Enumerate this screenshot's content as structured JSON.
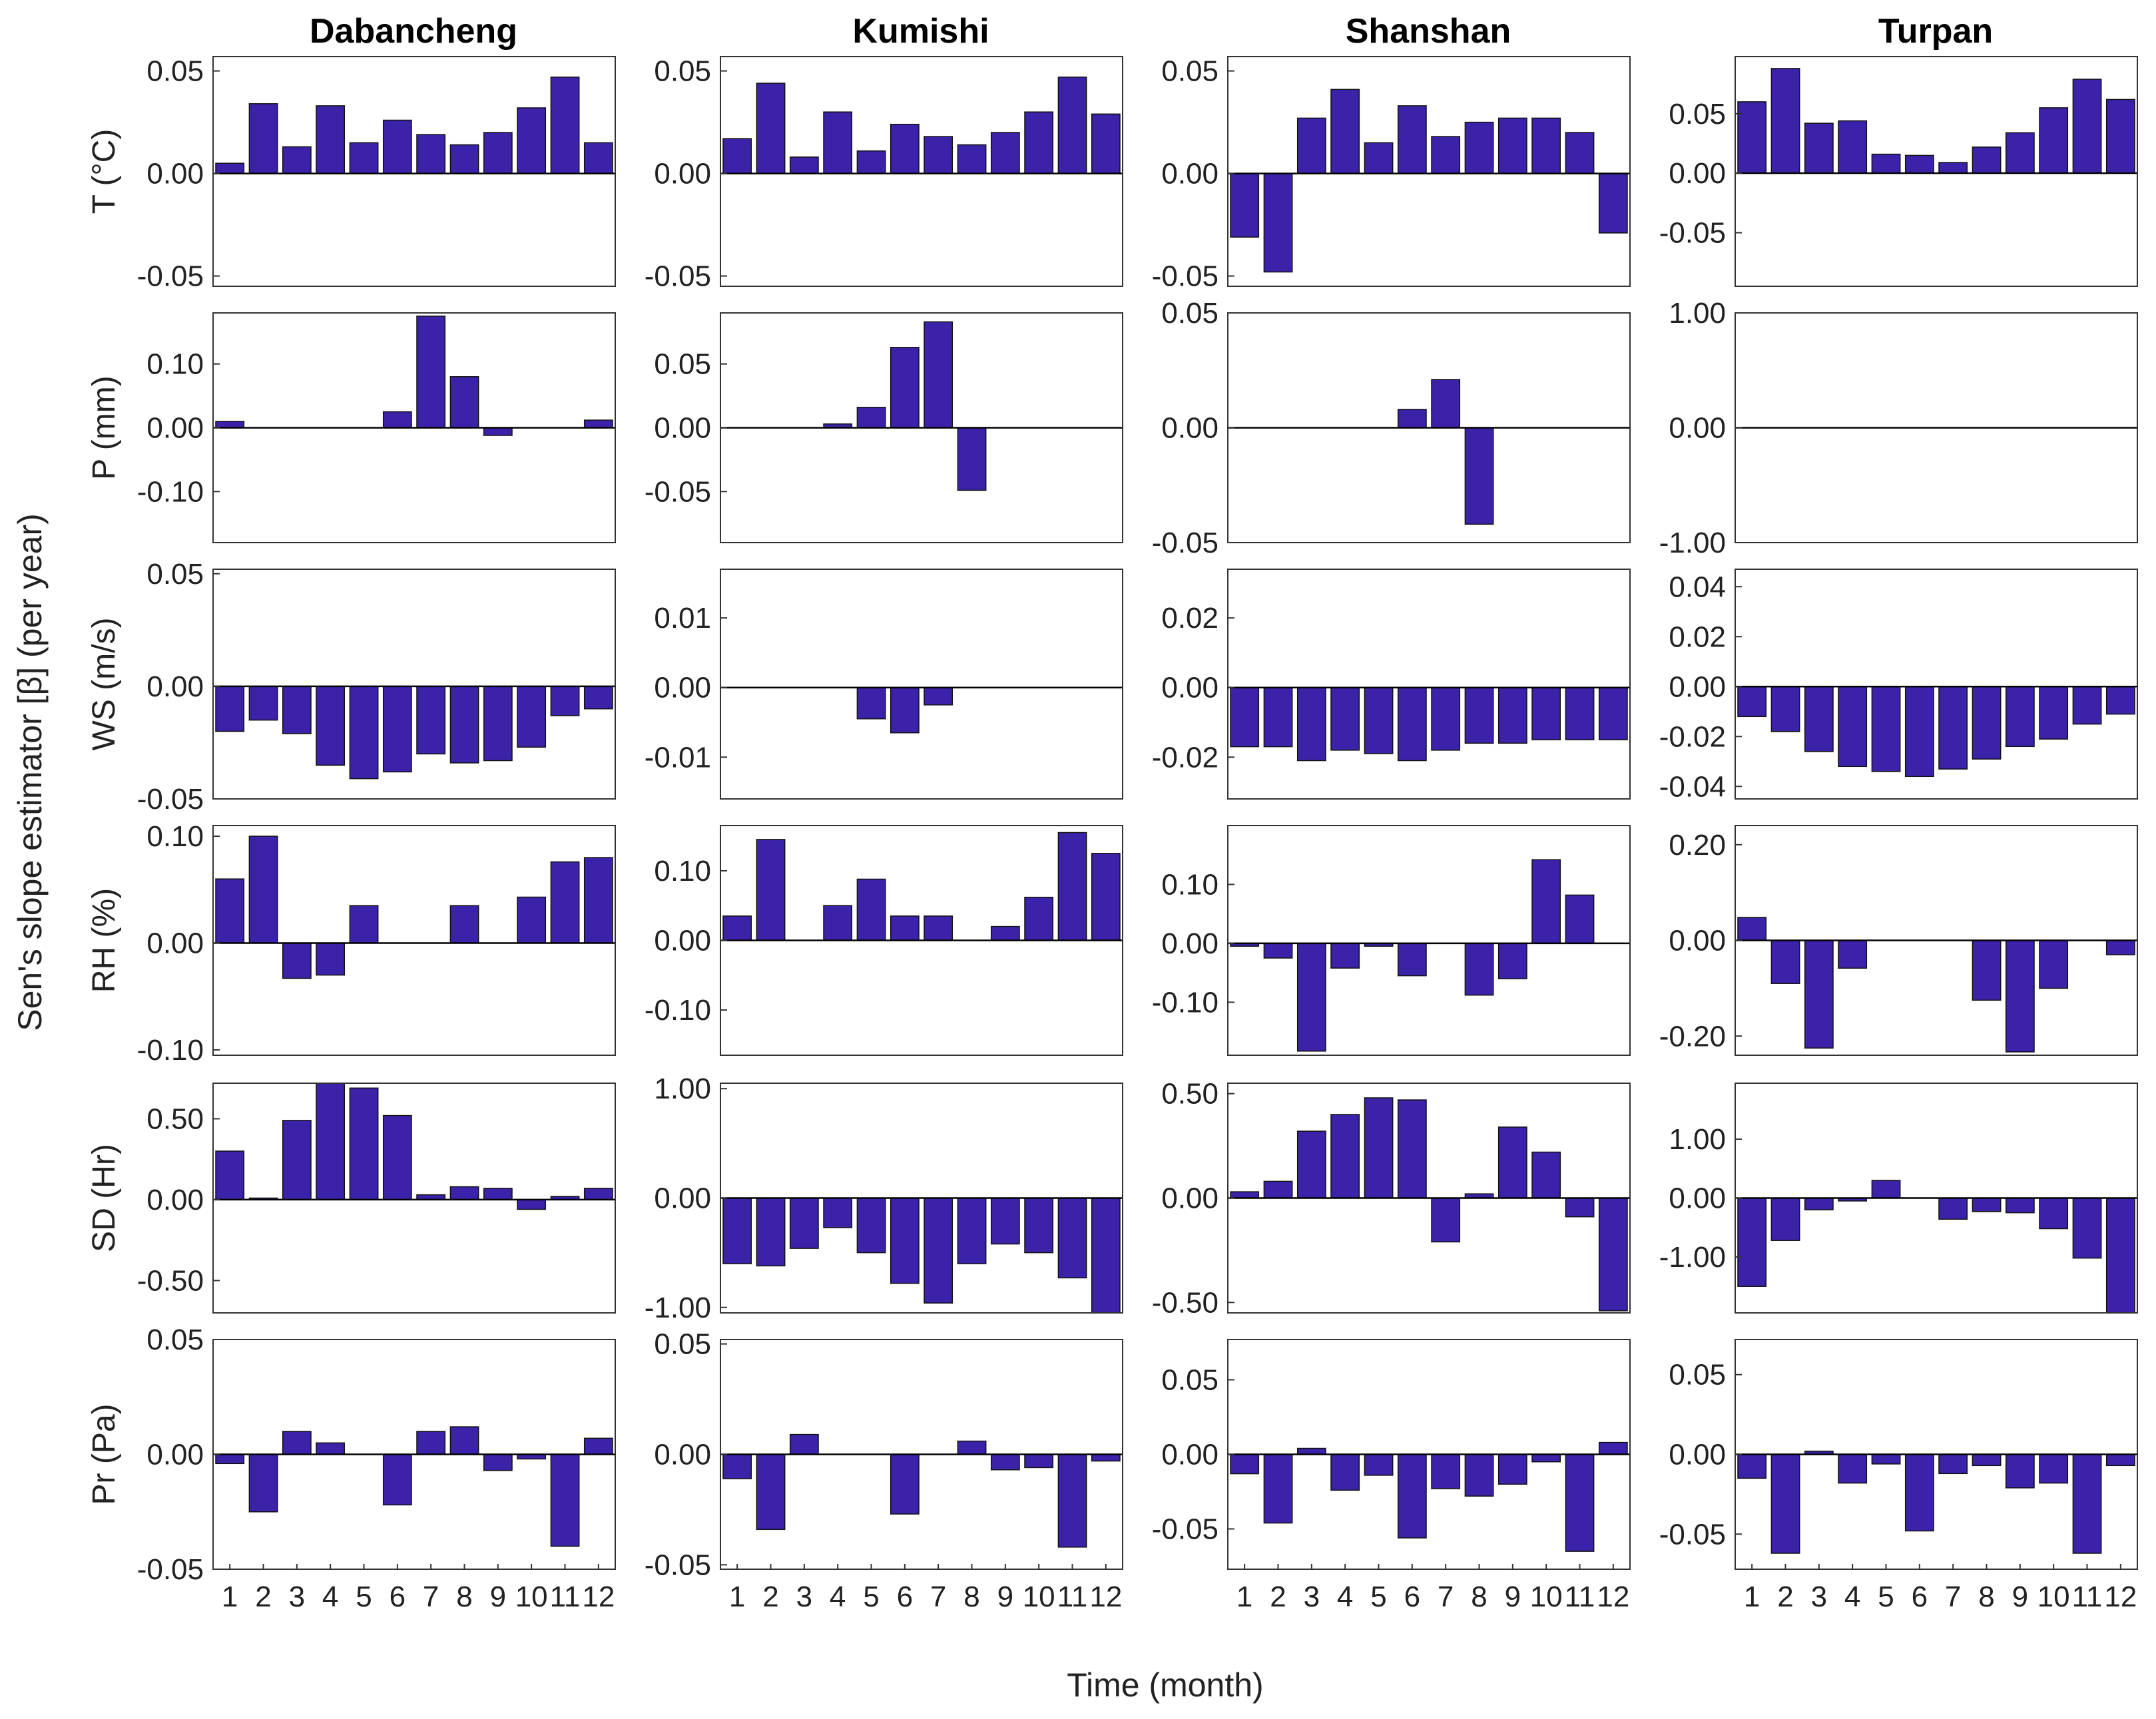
{
  "figure": {
    "y_label": "Sen's slope estimator [β] (per year)",
    "x_label": "Time (month)",
    "stations": [
      "Dabancheng",
      "Kumishi",
      "Shanshan",
      "Turpan"
    ],
    "variables": [
      "T (°C)",
      "P (mm)",
      "WS (m/s)",
      "RH (%)",
      "SD (Hr)",
      "Pr (Pa)"
    ],
    "month_ticks": [
      "1",
      "2",
      "3",
      "4",
      "5",
      "6",
      "7",
      "8",
      "9",
      "10",
      "11",
      "12"
    ],
    "bar_color": "#3b22a8"
  },
  "chart_data": [
    {
      "type": "bar",
      "station": "Dabancheng",
      "variable": "T (°C)",
      "ylim": [
        -0.055,
        0.057
      ],
      "yticks": [
        -0.05,
        0,
        0.05
      ],
      "ytick_labels": [
        "-0.05",
        "0.00",
        "0.05"
      ],
      "values": [
        0.005,
        0.034,
        0.013,
        0.033,
        0.015,
        0.026,
        0.019,
        0.014,
        0.02,
        0.032,
        0.047,
        0.015
      ]
    },
    {
      "type": "bar",
      "station": "Kumishi",
      "variable": "T (°C)",
      "ylim": [
        -0.055,
        0.057
      ],
      "yticks": [
        -0.05,
        0,
        0.05
      ],
      "ytick_labels": [
        "-0.05",
        "0.00",
        "0.05"
      ],
      "values": [
        0.017,
        0.044,
        0.008,
        0.03,
        0.011,
        0.024,
        0.018,
        0.014,
        0.02,
        0.03,
        0.047,
        0.029
      ]
    },
    {
      "type": "bar",
      "station": "Shanshan",
      "variable": "T (°C)",
      "ylim": [
        -0.055,
        0.057
      ],
      "yticks": [
        -0.05,
        0,
        0.05
      ],
      "ytick_labels": [
        "-0.05",
        "0.00",
        "0.05"
      ],
      "values": [
        -0.031,
        -0.048,
        0.027,
        0.041,
        0.015,
        0.033,
        0.018,
        0.025,
        0.027,
        0.027,
        0.02,
        -0.029
      ]
    },
    {
      "type": "bar",
      "station": "Turpan",
      "variable": "T (°C)",
      "ylim": [
        -0.095,
        0.098
      ],
      "yticks": [
        -0.05,
        0,
        0.05
      ],
      "ytick_labels": [
        "-0.05",
        "0.00",
        "0.05"
      ],
      "values": [
        0.06,
        0.088,
        0.042,
        0.044,
        0.016,
        0.015,
        0.009,
        0.022,
        0.034,
        0.055,
        0.079,
        0.062
      ]
    },
    {
      "type": "bar",
      "station": "Dabancheng",
      "variable": "P (mm)",
      "ylim": [
        -0.18,
        0.18
      ],
      "yticks": [
        -0.1,
        0,
        0.1
      ],
      "ytick_labels": [
        "-0.10",
        "0.00",
        "0.10"
      ],
      "values": [
        0.01,
        0,
        0,
        0,
        0,
        0.025,
        0.175,
        0.08,
        -0.012,
        0,
        0,
        0.012
      ]
    },
    {
      "type": "bar",
      "station": "Kumishi",
      "variable": "P (mm)",
      "ylim": [
        -0.09,
        0.09
      ],
      "yticks": [
        -0.05,
        0,
        0.05
      ],
      "ytick_labels": [
        "-0.05",
        "0.00",
        "0.05"
      ],
      "values": [
        0,
        0,
        0,
        0.003,
        0.016,
        0.063,
        0.083,
        -0.049,
        0,
        0,
        0,
        0
      ]
    },
    {
      "type": "bar",
      "station": "Shanshan",
      "variable": "P (mm)",
      "ylim": [
        -0.05,
        0.05
      ],
      "yticks": [
        -0.05,
        0,
        0.05
      ],
      "ytick_labels": [
        "-0.05",
        "0.00",
        "0.05"
      ],
      "values": [
        0,
        0,
        0,
        0,
        0,
        0.008,
        0.021,
        -0.042,
        0,
        0,
        0,
        0
      ]
    },
    {
      "type": "bar",
      "station": "Turpan",
      "variable": "P (mm)",
      "ylim": [
        -1,
        1
      ],
      "yticks": [
        -1,
        0,
        1
      ],
      "ytick_labels": [
        "-1.00",
        "0.00",
        "1.00"
      ],
      "values": [
        0,
        0,
        0,
        0,
        0,
        0,
        0,
        0,
        0,
        0,
        0,
        0
      ]
    },
    {
      "type": "bar",
      "station": "Dabancheng",
      "variable": "WS (m/s)",
      "ylim": [
        -0.05,
        0.052
      ],
      "yticks": [
        -0.05,
        0,
        0.05
      ],
      "ytick_labels": [
        "-0.05",
        "0.00",
        "0.05"
      ],
      "values": [
        -0.02,
        -0.015,
        -0.021,
        -0.035,
        -0.041,
        -0.038,
        -0.03,
        -0.034,
        -0.033,
        -0.027,
        -0.013,
        -0.01
      ]
    },
    {
      "type": "bar",
      "station": "Kumishi",
      "variable": "WS (m/s)",
      "ylim": [
        -0.016,
        0.017
      ],
      "yticks": [
        -0.01,
        0,
        0.01
      ],
      "ytick_labels": [
        "-0.01",
        "0.00",
        "0.01"
      ],
      "values": [
        0,
        0,
        0,
        0,
        -0.0045,
        -0.0065,
        -0.0025,
        0,
        0,
        0,
        0,
        0
      ]
    },
    {
      "type": "bar",
      "station": "Shanshan",
      "variable": "WS (m/s)",
      "ylim": [
        -0.032,
        0.034
      ],
      "yticks": [
        -0.02,
        0,
        0.02
      ],
      "ytick_labels": [
        "-0.02",
        "0.00",
        "0.02"
      ],
      "values": [
        -0.017,
        -0.017,
        -0.021,
        -0.018,
        -0.019,
        -0.021,
        -0.018,
        -0.016,
        -0.016,
        -0.015,
        -0.015,
        -0.015
      ]
    },
    {
      "type": "bar",
      "station": "Turpan",
      "variable": "WS (m/s)",
      "ylim": [
        -0.045,
        0.047
      ],
      "yticks": [
        -0.04,
        -0.02,
        0,
        0.02,
        0.04
      ],
      "ytick_labels": [
        "-0.04",
        "-0.02",
        "0.00",
        "0.02",
        "0.04"
      ],
      "values": [
        -0.012,
        -0.018,
        -0.026,
        -0.032,
        -0.034,
        -0.036,
        -0.033,
        -0.029,
        -0.024,
        -0.021,
        -0.015,
        -0.011
      ]
    },
    {
      "type": "bar",
      "station": "Dabancheng",
      "variable": "RH (%)",
      "ylim": [
        -0.105,
        0.11
      ],
      "yticks": [
        -0.1,
        0,
        0.1
      ],
      "ytick_labels": [
        "-0.10",
        "0.00",
        "0.10"
      ],
      "values": [
        0.06,
        0.1,
        -0.033,
        -0.03,
        0.035,
        0,
        0,
        0.035,
        0,
        0.043,
        0.076,
        0.08
      ]
    },
    {
      "type": "bar",
      "station": "Kumishi",
      "variable": "RH (%)",
      "ylim": [
        -0.165,
        0.165
      ],
      "yticks": [
        -0.1,
        0,
        0.1
      ],
      "ytick_labels": [
        "-0.10",
        "0.00",
        "0.10"
      ],
      "values": [
        0.035,
        0.145,
        0,
        0.05,
        0.088,
        0.035,
        0.035,
        0,
        0.02,
        0.062,
        0.155,
        0.125
      ]
    },
    {
      "type": "bar",
      "station": "Shanshan",
      "variable": "RH (%)",
      "ylim": [
        -0.19,
        0.2
      ],
      "yticks": [
        -0.1,
        0,
        0.1
      ],
      "ytick_labels": [
        "-0.10",
        "0.00",
        "0.10"
      ],
      "values": [
        -0.005,
        -0.025,
        -0.183,
        -0.042,
        -0.005,
        -0.055,
        0,
        -0.088,
        -0.06,
        0.142,
        0.082,
        0
      ]
    },
    {
      "type": "bar",
      "station": "Turpan",
      "variable": "RH (%)",
      "ylim": [
        -0.24,
        0.24
      ],
      "yticks": [
        -0.2,
        0,
        0.2
      ],
      "ytick_labels": [
        "-0.20",
        "0.00",
        "0.20"
      ],
      "values": [
        0.048,
        -0.09,
        -0.225,
        -0.058,
        0,
        0,
        0,
        -0.125,
        -0.233,
        -0.1,
        0,
        -0.03
      ]
    },
    {
      "type": "bar",
      "station": "Dabancheng",
      "variable": "SD (Hr)",
      "ylim": [
        -0.7,
        0.72
      ],
      "yticks": [
        -0.5,
        0,
        0.5
      ],
      "ytick_labels": [
        "-0.50",
        "0.00",
        "0.50"
      ],
      "values": [
        0.3,
        0.01,
        0.49,
        0.72,
        0.69,
        0.52,
        0.03,
        0.08,
        0.07,
        -0.06,
        0.02,
        0.07
      ]
    },
    {
      "type": "bar",
      "station": "Kumishi",
      "variable": "SD (Hr)",
      "ylim": [
        -1.05,
        1.05
      ],
      "yticks": [
        -1,
        0,
        1
      ],
      "ytick_labels": [
        "-1.00",
        "0.00",
        "1.00"
      ],
      "values": [
        -0.6,
        -0.62,
        -0.46,
        -0.27,
        -0.5,
        -0.78,
        -0.96,
        -0.6,
        -0.42,
        -0.5,
        -0.73,
        -1.05
      ]
    },
    {
      "type": "bar",
      "station": "Shanshan",
      "variable": "SD (Hr)",
      "ylim": [
        -0.55,
        0.55
      ],
      "yticks": [
        -0.5,
        0,
        0.5
      ],
      "ytick_labels": [
        "-0.50",
        "0.00",
        "0.50"
      ],
      "values": [
        0.03,
        0.08,
        0.32,
        0.4,
        0.48,
        0.47,
        -0.21,
        0.02,
        0.34,
        0.22,
        -0.09,
        -0.54
      ]
    },
    {
      "type": "bar",
      "station": "Turpan",
      "variable": "SD (Hr)",
      "ylim": [
        -1.95,
        1.95
      ],
      "yticks": [
        -1,
        0,
        1
      ],
      "ytick_labels": [
        "-1.00",
        "0.00",
        "1.00"
      ],
      "values": [
        -1.5,
        -0.72,
        -0.2,
        -0.05,
        0.3,
        0,
        -0.36,
        -0.23,
        -0.25,
        -0.52,
        -1.02,
        -1.95
      ]
    },
    {
      "type": "bar",
      "station": "Dabancheng",
      "variable": "Pr (Pa)",
      "ylim": [
        -0.05,
        0.05
      ],
      "yticks": [
        -0.05,
        0,
        0.05
      ],
      "ytick_labels": [
        "-0.05",
        "0.00",
        "0.05"
      ],
      "values": [
        -0.004,
        -0.025,
        0.01,
        0.005,
        0,
        -0.022,
        0.01,
        0.012,
        -0.007,
        -0.002,
        -0.04,
        0.007
      ]
    },
    {
      "type": "bar",
      "station": "Kumishi",
      "variable": "Pr (Pa)",
      "ylim": [
        -0.052,
        0.052
      ],
      "yticks": [
        -0.05,
        0,
        0.05
      ],
      "ytick_labels": [
        "-0.05",
        "0.00",
        "0.05"
      ],
      "values": [
        -0.011,
        -0.034,
        0.009,
        0,
        0,
        -0.027,
        0,
        0.006,
        -0.007,
        -0.006,
        -0.042,
        -0.003
      ]
    },
    {
      "type": "bar",
      "station": "Shanshan",
      "variable": "Pr (Pa)",
      "ylim": [
        -0.077,
        0.077
      ],
      "yticks": [
        -0.05,
        0,
        0.05
      ],
      "ytick_labels": [
        "-0.05",
        "0.00",
        "0.05"
      ],
      "values": [
        -0.013,
        -0.046,
        0.004,
        -0.024,
        -0.014,
        -0.056,
        -0.023,
        -0.028,
        -0.02,
        -0.005,
        -0.065,
        0.008
      ]
    },
    {
      "type": "bar",
      "station": "Turpan",
      "variable": "Pr (Pa)",
      "ylim": [
        -0.072,
        0.072
      ],
      "yticks": [
        -0.05,
        0,
        0.05
      ],
      "ytick_labels": [
        "-0.05",
        "0.00",
        "0.05"
      ],
      "values": [
        -0.015,
        -0.062,
        0.002,
        -0.018,
        -0.006,
        -0.048,
        -0.012,
        -0.007,
        -0.021,
        -0.018,
        -0.062,
        -0.007
      ]
    }
  ]
}
